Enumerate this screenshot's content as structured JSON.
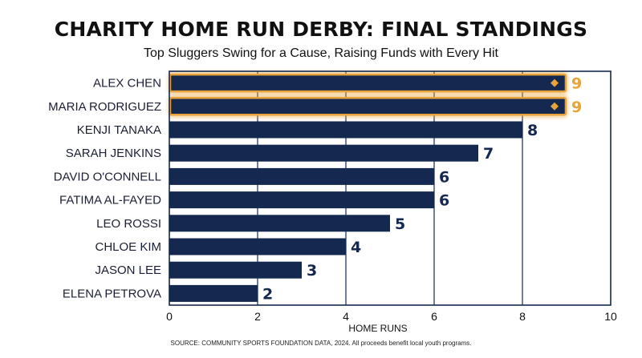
{
  "title": "CHARITY HOME RUN DERBY: FINAL STANDINGS",
  "subtitle": "Top Sluggers Swing for a Cause, Raising Funds with Every Hit",
  "source": "SOURCE: COMMUNITY SPORTS FOUNDATION DATA, 2024. All proceeds benefit local youth programs.",
  "colors": {
    "bar": "#15284f",
    "highlight_fill": "#15284f",
    "highlight_border": "#e8a33a",
    "highlight_label": "#e8a33a",
    "label": "#15284f",
    "grid": "#15284f"
  },
  "chart_data": {
    "type": "bar",
    "orientation": "horizontal",
    "title": "CHARITY HOME RUN DERBY: FINAL STANDINGS",
    "subtitle": "Top Sluggers Swing for a Cause, Raising Funds with Every Hit",
    "xlabel": "HOME RUNS",
    "ylabel": "",
    "xlim": [
      0,
      10
    ],
    "xticks": [
      0,
      2,
      4,
      6,
      8,
      10
    ],
    "grid": true,
    "categories": [
      "ALEX CHEN",
      "MARIA RODRIGUEZ",
      "KENJI TANAKA",
      "SARAH JENKINS",
      "DAVID O'CONNELL",
      "FATIMA AL-FAYED",
      "LEO ROSSI",
      "CHLOE KIM",
      "JASON LEE",
      "ELENA PETROVA"
    ],
    "values": [
      9,
      9,
      8,
      7,
      6,
      6,
      5,
      4,
      3,
      2
    ],
    "highlighted": [
      "ALEX CHEN",
      "MARIA RODRIGUEZ"
    ]
  }
}
